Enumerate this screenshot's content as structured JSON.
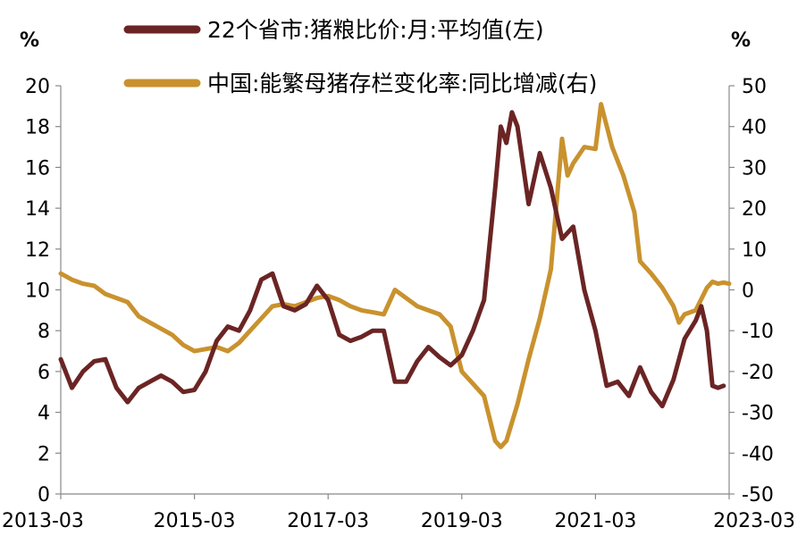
{
  "chart_data": {
    "type": "line",
    "left_unit": "%",
    "right_unit": "%",
    "x_tick_labels": [
      "2013-03",
      "2015-03",
      "2017-03",
      "2019-03",
      "2021-03",
      "2023-03"
    ],
    "x_range": [
      "2013-03",
      "2023-03"
    ],
    "y_left": {
      "min": 0,
      "max": 20,
      "ticks": [
        0,
        2,
        4,
        6,
        8,
        10,
        12,
        14,
        16,
        18,
        20
      ]
    },
    "y_right": {
      "min": -50,
      "max": 50,
      "ticks": [
        -50,
        -40,
        -30,
        -20,
        -10,
        0,
        10,
        20,
        30,
        40,
        50
      ]
    },
    "grid": false,
    "legend_position": "top",
    "series": [
      {
        "name": "22个省市:猪粮比价:月:平均值(左)",
        "axis": "left",
        "color": "#6b2424",
        "points": [
          [
            "2013-03",
            6.6
          ],
          [
            "2013-05",
            5.2
          ],
          [
            "2013-07",
            6.0
          ],
          [
            "2013-09",
            6.5
          ],
          [
            "2013-11",
            6.6
          ],
          [
            "2014-01",
            5.2
          ],
          [
            "2014-03",
            4.5
          ],
          [
            "2014-05",
            5.2
          ],
          [
            "2014-07",
            5.5
          ],
          [
            "2014-09",
            5.8
          ],
          [
            "2014-11",
            5.5
          ],
          [
            "2015-01",
            5.0
          ],
          [
            "2015-03",
            5.1
          ],
          [
            "2015-05",
            6.0
          ],
          [
            "2015-07",
            7.5
          ],
          [
            "2015-09",
            8.2
          ],
          [
            "2015-11",
            8.0
          ],
          [
            "2016-01",
            9.0
          ],
          [
            "2016-03",
            10.5
          ],
          [
            "2016-05",
            10.8
          ],
          [
            "2016-07",
            9.2
          ],
          [
            "2016-09",
            9.0
          ],
          [
            "2016-11",
            9.3
          ],
          [
            "2017-01",
            10.2
          ],
          [
            "2017-03",
            9.5
          ],
          [
            "2017-05",
            7.8
          ],
          [
            "2017-07",
            7.5
          ],
          [
            "2017-09",
            7.7
          ],
          [
            "2017-11",
            8.0
          ],
          [
            "2018-01",
            8.0
          ],
          [
            "2018-03",
            5.5
          ],
          [
            "2018-05",
            5.5
          ],
          [
            "2018-07",
            6.5
          ],
          [
            "2018-09",
            7.2
          ],
          [
            "2018-11",
            6.7
          ],
          [
            "2019-01",
            6.3
          ],
          [
            "2019-03",
            6.8
          ],
          [
            "2019-05",
            8.0
          ],
          [
            "2019-07",
            9.5
          ],
          [
            "2019-09",
            15.0
          ],
          [
            "2019-10",
            18.0
          ],
          [
            "2019-11",
            17.2
          ],
          [
            "2019-12",
            18.7
          ],
          [
            "2020-01",
            18.0
          ],
          [
            "2020-03",
            14.2
          ],
          [
            "2020-05",
            16.7
          ],
          [
            "2020-07",
            15.0
          ],
          [
            "2020-09",
            12.5
          ],
          [
            "2020-11",
            13.1
          ],
          [
            "2021-01",
            10.0
          ],
          [
            "2021-03",
            8.0
          ],
          [
            "2021-05",
            5.3
          ],
          [
            "2021-07",
            5.5
          ],
          [
            "2021-09",
            4.8
          ],
          [
            "2021-11",
            6.2
          ],
          [
            "2022-01",
            5.0
          ],
          [
            "2022-03",
            4.3
          ],
          [
            "2022-05",
            5.6
          ],
          [
            "2022-07",
            7.6
          ],
          [
            "2022-09",
            8.5
          ],
          [
            "2022-10",
            9.2
          ],
          [
            "2022-11",
            8.0
          ],
          [
            "2022-12",
            5.3
          ],
          [
            "2023-01",
            5.2
          ],
          [
            "2023-02",
            5.3
          ]
        ]
      },
      {
        "name": "中国:能繁母猪存栏变化率:同比增减(右)",
        "axis": "right",
        "color": "#c9922e",
        "points": [
          [
            "2013-03",
            4.0
          ],
          [
            "2013-05",
            2.5
          ],
          [
            "2013-07",
            1.5
          ],
          [
            "2013-09",
            1.0
          ],
          [
            "2013-11",
            -1.0
          ],
          [
            "2014-01",
            -2.0
          ],
          [
            "2014-03",
            -3.0
          ],
          [
            "2014-05",
            -6.5
          ],
          [
            "2014-07",
            -8.0
          ],
          [
            "2014-09",
            -9.5
          ],
          [
            "2014-11",
            -11.0
          ],
          [
            "2015-01",
            -13.5
          ],
          [
            "2015-03",
            -15.0
          ],
          [
            "2015-05",
            -14.5
          ],
          [
            "2015-07",
            -14.0
          ],
          [
            "2015-09",
            -15.0
          ],
          [
            "2015-11",
            -13.0
          ],
          [
            "2016-01",
            -10.0
          ],
          [
            "2016-03",
            -7.0
          ],
          [
            "2016-05",
            -4.0
          ],
          [
            "2016-07",
            -3.5
          ],
          [
            "2016-09",
            -4.0
          ],
          [
            "2016-11",
            -3.0
          ],
          [
            "2017-01",
            -2.0
          ],
          [
            "2017-03",
            -1.5
          ],
          [
            "2017-05",
            -2.5
          ],
          [
            "2017-07",
            -4.0
          ],
          [
            "2017-09",
            -5.0
          ],
          [
            "2017-11",
            -5.5
          ],
          [
            "2018-01",
            -6.0
          ],
          [
            "2018-03",
            0.0
          ],
          [
            "2018-05",
            -2.0
          ],
          [
            "2018-07",
            -4.0
          ],
          [
            "2018-09",
            -5.0
          ],
          [
            "2018-11",
            -6.0
          ],
          [
            "2019-01",
            -9.0
          ],
          [
            "2019-03",
            -20.0
          ],
          [
            "2019-05",
            -23.0
          ],
          [
            "2019-07",
            -26.0
          ],
          [
            "2019-09",
            -37.0
          ],
          [
            "2019-10",
            -38.5
          ],
          [
            "2019-11",
            -37.0
          ],
          [
            "2020-01",
            -28.0
          ],
          [
            "2020-03",
            -17.0
          ],
          [
            "2020-05",
            -7.0
          ],
          [
            "2020-07",
            5.0
          ],
          [
            "2020-09",
            37.0
          ],
          [
            "2020-10",
            28.0
          ],
          [
            "2020-11",
            31.0
          ],
          [
            "2021-01",
            35.0
          ],
          [
            "2021-03",
            34.5
          ],
          [
            "2021-04",
            45.5
          ],
          [
            "2021-06",
            35.0
          ],
          [
            "2021-08",
            28.0
          ],
          [
            "2021-10",
            19.0
          ],
          [
            "2021-11",
            7.0
          ],
          [
            "2022-01",
            4.0
          ],
          [
            "2022-03",
            0.5
          ],
          [
            "2022-05",
            -4.0
          ],
          [
            "2022-06",
            -8.0
          ],
          [
            "2022-07",
            -6.0
          ],
          [
            "2022-09",
            -5.0
          ],
          [
            "2022-11",
            0.5
          ],
          [
            "2022-12",
            2.0
          ],
          [
            "2023-01",
            1.5
          ],
          [
            "2023-02",
            1.8
          ],
          [
            "2023-03",
            1.5
          ]
        ]
      }
    ]
  }
}
